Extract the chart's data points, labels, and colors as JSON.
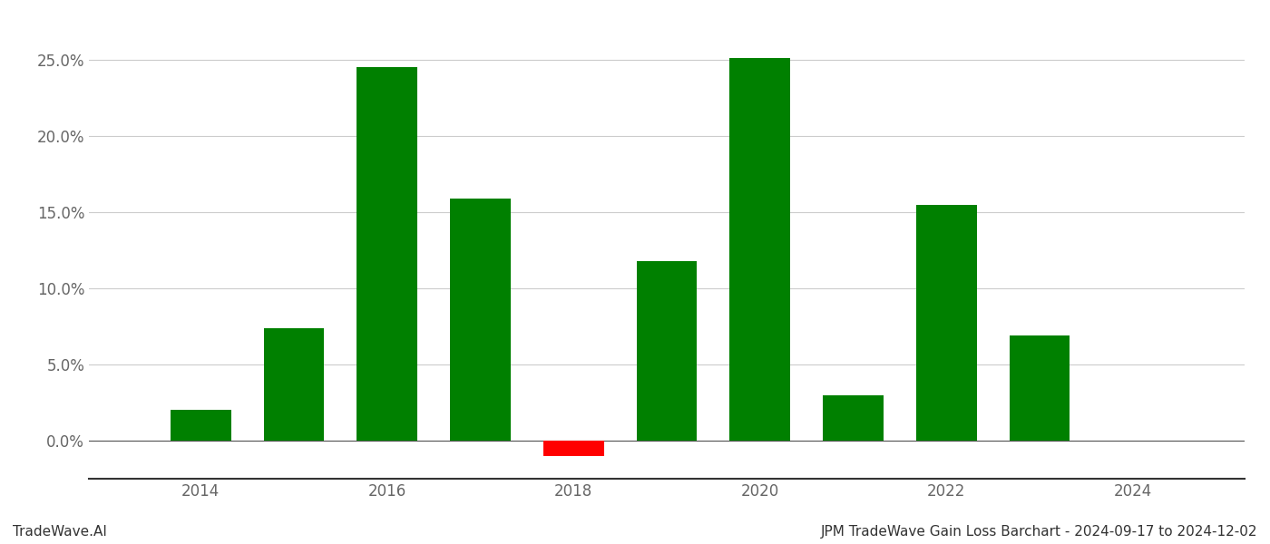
{
  "years": [
    2014,
    2015,
    2016,
    2017,
    2018,
    2019,
    2020,
    2021,
    2022,
    2023
  ],
  "values": [
    0.02,
    0.074,
    0.245,
    0.159,
    -0.01,
    0.118,
    0.251,
    0.03,
    0.155,
    0.069
  ],
  "colors": [
    "#008000",
    "#008000",
    "#008000",
    "#008000",
    "#ff0000",
    "#008000",
    "#008000",
    "#008000",
    "#008000",
    "#008000"
  ],
  "title_left": "TradeWave.AI",
  "title_right": "JPM TradeWave Gain Loss Barchart - 2024-09-17 to 2024-12-02",
  "ylim_min": -0.025,
  "ylim_max": 0.275,
  "yticks": [
    0.0,
    0.05,
    0.1,
    0.15,
    0.2,
    0.25
  ],
  "ytick_labels": [
    "0.0%",
    "5.0%",
    "10.0%",
    "15.0%",
    "20.0%",
    "25.0%"
  ],
  "xtick_positions": [
    2014,
    2016,
    2018,
    2020,
    2022,
    2024
  ],
  "background_color": "#ffffff",
  "bar_width": 0.65,
  "grid_color": "#cccccc",
  "title_fontsize": 11,
  "tick_fontsize": 12
}
